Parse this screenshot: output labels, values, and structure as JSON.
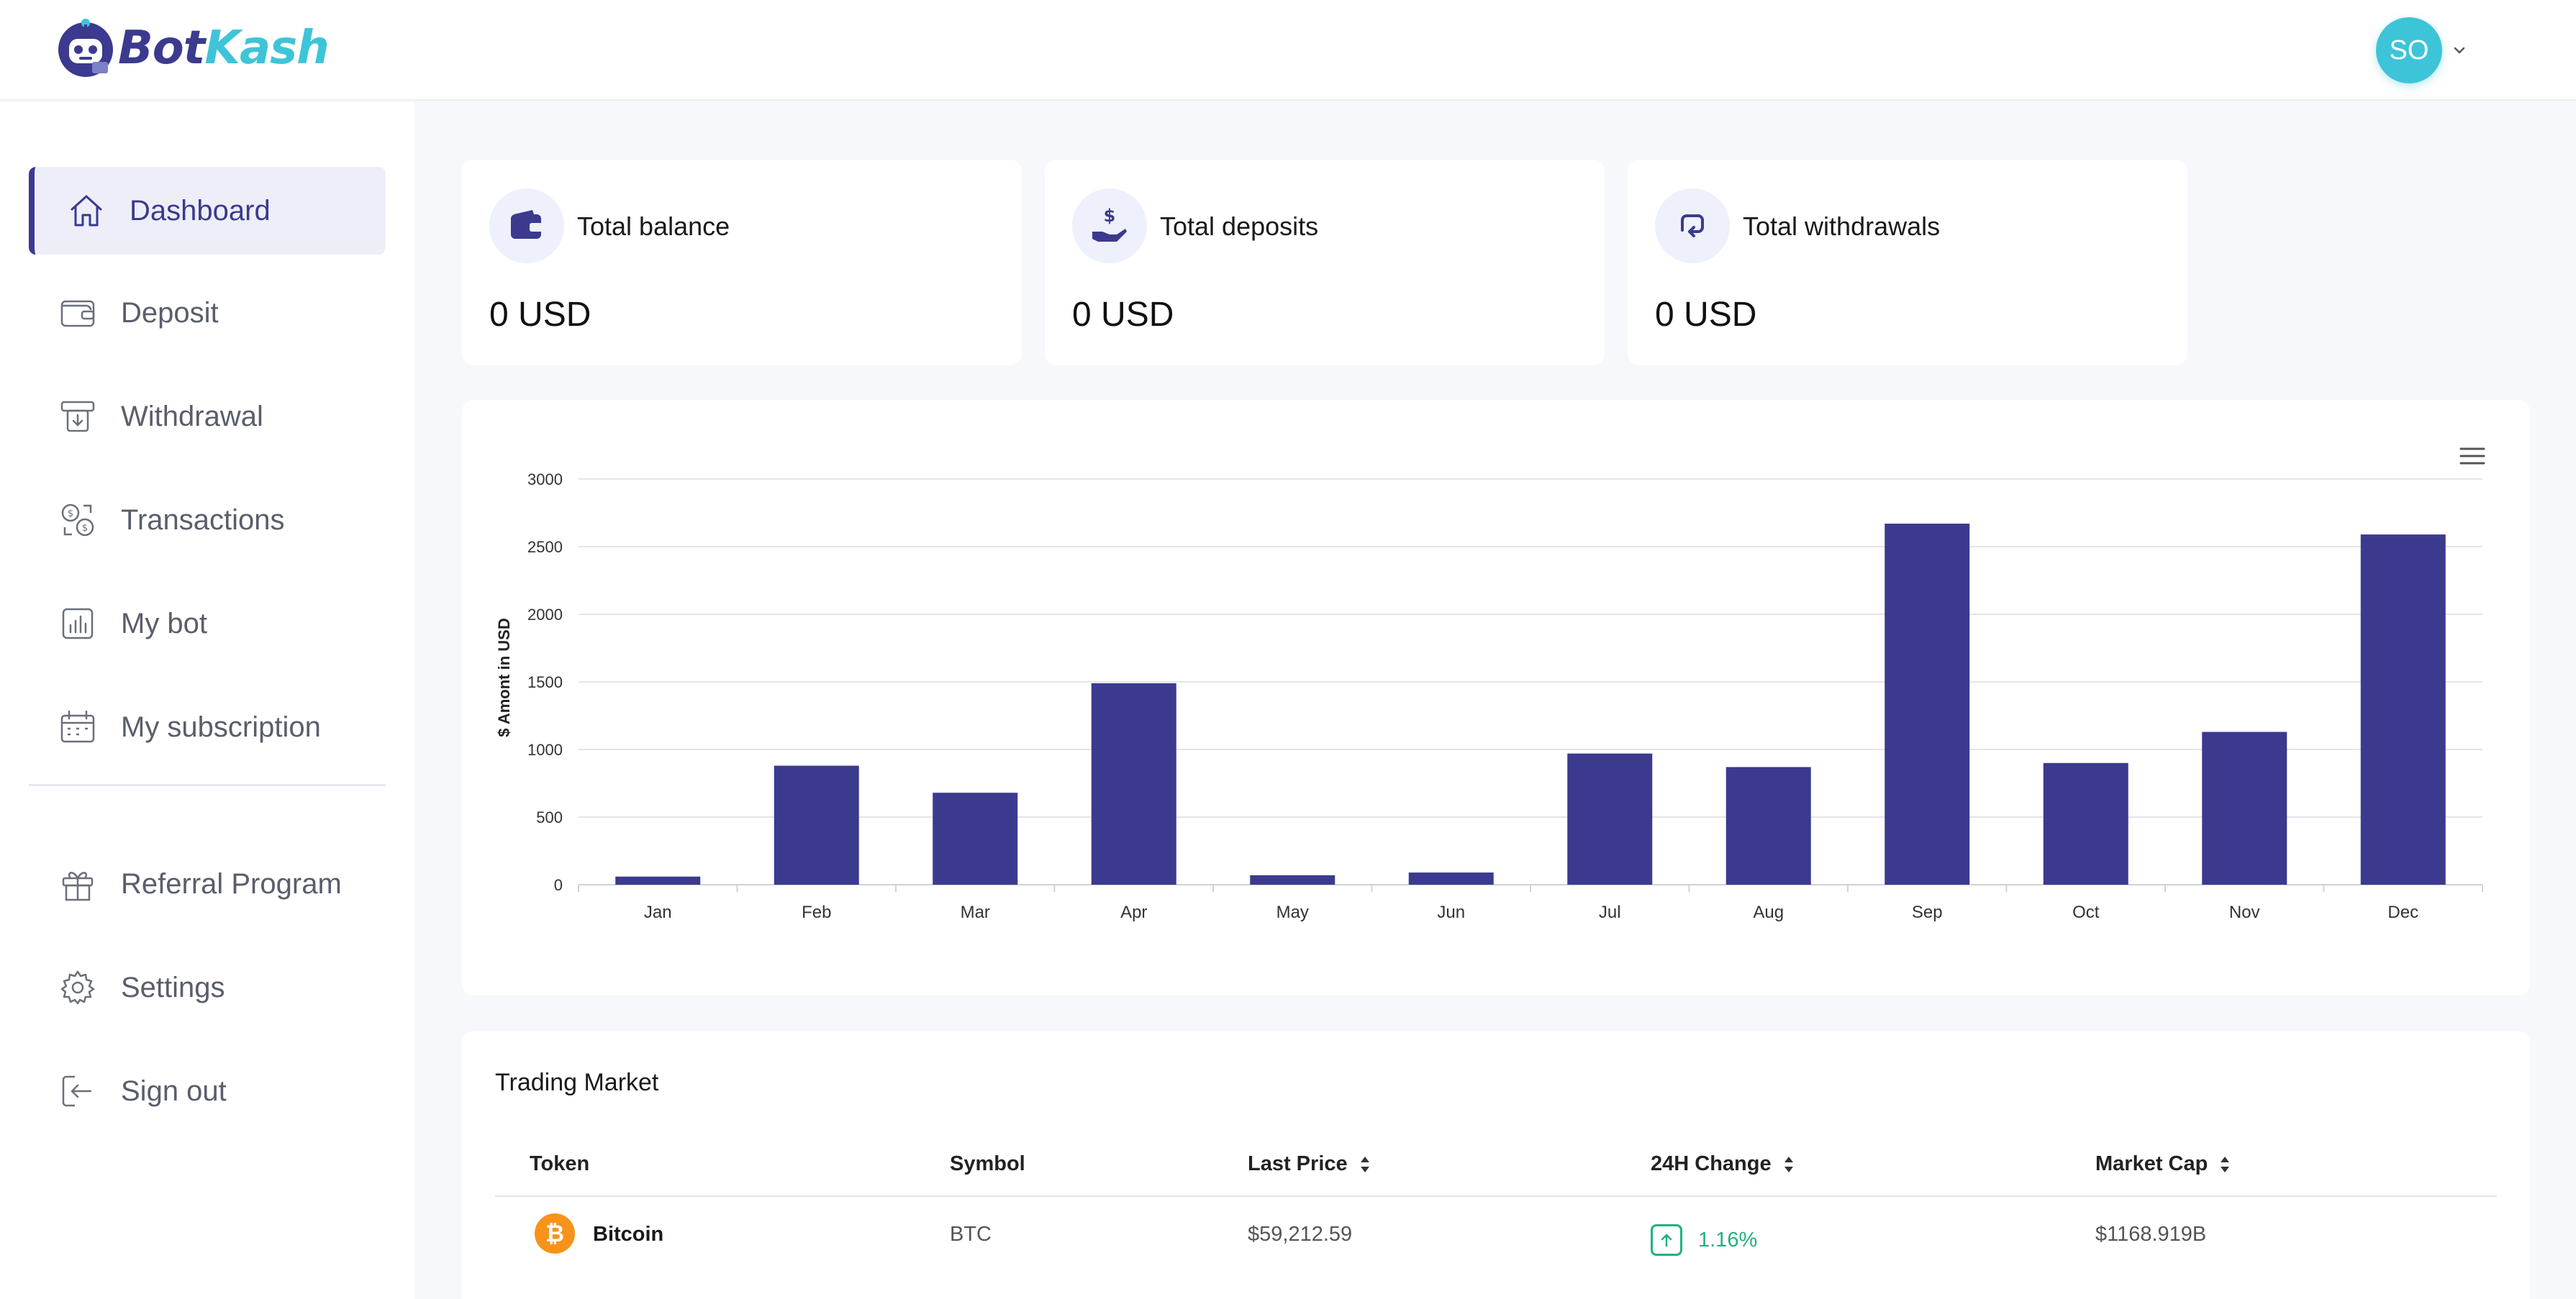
{
  "header": {
    "logo": {
      "part1": "Bot",
      "part2": "Kash"
    },
    "user": {
      "initials": "SO"
    }
  },
  "sidebar": {
    "items": [
      {
        "label": "Dashboard",
        "icon": "home-icon",
        "active": true
      },
      {
        "label": "Deposit",
        "icon": "wallet-icon"
      },
      {
        "label": "Withdrawal",
        "icon": "atm-withdraw-icon"
      },
      {
        "label": "Transactions",
        "icon": "exchange-icon"
      },
      {
        "label": "My bot",
        "icon": "bar-chart-icon"
      },
      {
        "label": "My subscription",
        "icon": "calendar-icon"
      },
      {
        "label": "Referral Program",
        "icon": "gift-icon"
      },
      {
        "label": "Settings",
        "icon": "gear-icon"
      },
      {
        "label": "Sign out",
        "icon": "sign-out-icon"
      }
    ]
  },
  "stats": [
    {
      "title": "Total balance",
      "value": "0 USD",
      "icon": "wallet-icon"
    },
    {
      "title": "Total deposits",
      "value": "0 USD",
      "icon": "hand-dollar-icon"
    },
    {
      "title": "Total withdrawals",
      "value": "0 USD",
      "icon": "withdraw-arrow-icon"
    }
  ],
  "chart_data": {
    "type": "bar",
    "categories": [
      "Jan",
      "Feb",
      "Mar",
      "Apr",
      "May",
      "Jun",
      "Jul",
      "Aug",
      "Sep",
      "Oct",
      "Nov",
      "Dec"
    ],
    "values": [
      60,
      880,
      680,
      1490,
      70,
      90,
      970,
      870,
      2670,
      900,
      1130,
      2590
    ],
    "ylabel": "$ Amont in USD",
    "ylim": [
      0,
      3000
    ],
    "yticks": [
      0,
      500,
      1000,
      1500,
      2000,
      2500,
      3000
    ],
    "grid": true,
    "bar_color": "#3b3a8f"
  },
  "market": {
    "title": "Trading Market",
    "columns": [
      "Token",
      "Symbol",
      "Last Price",
      "24H Change",
      "Market Cap"
    ],
    "rows": [
      {
        "token": "Bitcoin",
        "symbol": "BTC",
        "last_price": "$59,212.59",
        "change": "1.16%",
        "market_cap": "$1168.919B",
        "change_color": "#22b07d"
      }
    ]
  }
}
